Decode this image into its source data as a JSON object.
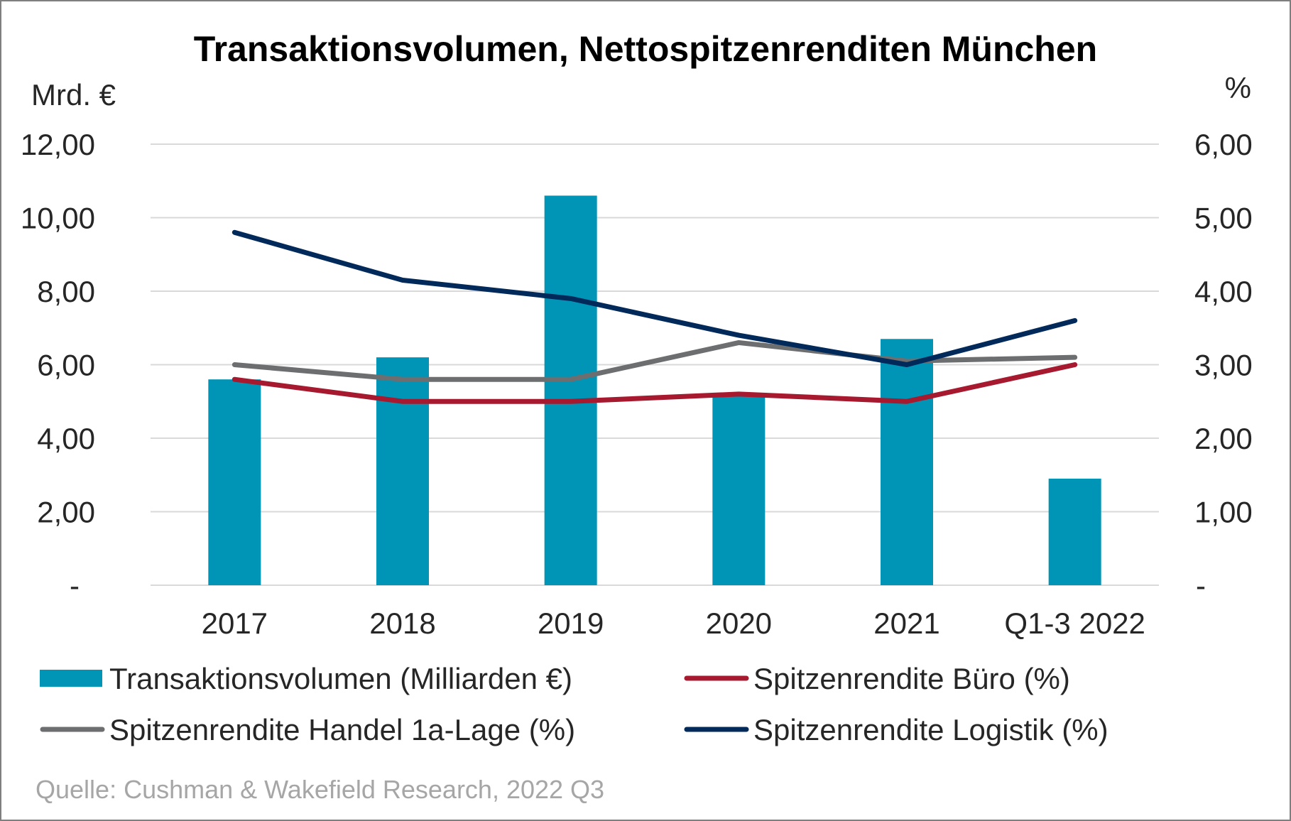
{
  "chart_data": {
    "type": "bar",
    "title": "Transaktionsvolumen, Nettospitzenrenditen München",
    "left_axis_unit": "Mrd. €",
    "right_axis_unit": "%",
    "categories": [
      "2017",
      "2018",
      "2019",
      "2020",
      "2021",
      "Q1-3 2022"
    ],
    "left_ylim": [
      0,
      12
    ],
    "right_ylim": [
      0,
      6
    ],
    "left_ticks": [
      "-",
      "2,00",
      "4,00",
      "6,00",
      "8,00",
      "10,00",
      "12,00"
    ],
    "right_ticks": [
      "-",
      "1,00",
      "2,00",
      "3,00",
      "4,00",
      "5,00",
      "6,00"
    ],
    "grid": true,
    "legend_position": "bottom",
    "bar_series": {
      "name": "Transaktionsvolumen (Milliarden €)",
      "axis": "left",
      "color": "#0095B6",
      "values": [
        5.6,
        6.2,
        10.6,
        5.2,
        6.7,
        2.9
      ]
    },
    "line_series": [
      {
        "name": "Spitzenrendite Büro (%)",
        "axis": "right",
        "color": "#A6192E",
        "values": [
          2.8,
          2.5,
          2.5,
          2.6,
          2.5,
          3.0
        ]
      },
      {
        "name": "Spitzenrendite Handel 1a-Lage (%)",
        "axis": "right",
        "color": "#6D6E70",
        "values": [
          3.0,
          2.8,
          2.8,
          3.3,
          3.05,
          3.1
        ]
      },
      {
        "name": "Spitzenrendite Logistik (%)",
        "axis": "right",
        "color": "#012A5B",
        "values": [
          4.8,
          4.15,
          3.9,
          3.4,
          3.0,
          3.6
        ]
      }
    ],
    "legend": [
      {
        "label": "Transaktionsvolumen (Milliarden €)",
        "kind": "bar",
        "color": "#0095B6"
      },
      {
        "label": "Spitzenrendite Büro (%)",
        "kind": "line",
        "color": "#A6192E"
      },
      {
        "label": "Spitzenrendite Handel 1a-Lage (%)",
        "kind": "line",
        "color": "#6D6E70"
      },
      {
        "label": "Spitzenrendite Logistik (%)",
        "kind": "line",
        "color": "#012A5B"
      }
    ],
    "source": "Quelle: Cushman & Wakefield Research, 2022 Q3"
  }
}
